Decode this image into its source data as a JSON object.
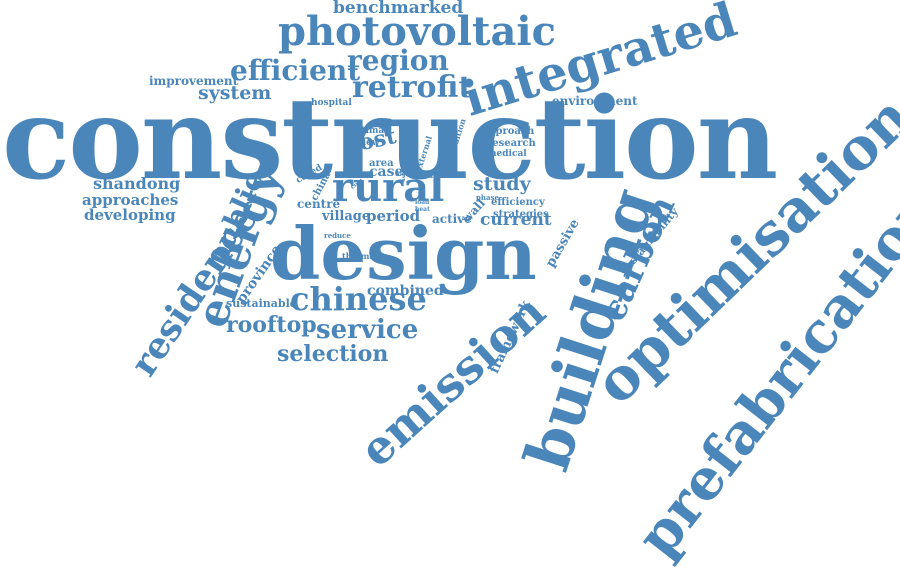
{
  "colors": {
    "word": "#4a86ba",
    "background": "#ffffff"
  },
  "words": [
    "construction",
    "design",
    "building",
    "optimisation",
    "prefabrication",
    "emission",
    "integrated",
    "energy",
    "photovoltaic",
    "rural",
    "residence",
    "carbon",
    "chinese",
    "public",
    "retrofit",
    "efficient",
    "region",
    "service",
    "rooftop",
    "selection",
    "benchmarked",
    "system",
    "shandong",
    "study",
    "post",
    "approaches",
    "developing",
    "improvement",
    "current",
    "province",
    "combined",
    "period",
    "case",
    "village",
    "centre",
    "active",
    "sustainable",
    "framework",
    "environment",
    "passive",
    "sustainability",
    "wall",
    "strategies",
    "efficiency",
    "approach",
    "research",
    "medical",
    "hospital",
    "optimal",
    "review",
    "area",
    "condition",
    "external",
    "china",
    "cased",
    "thermal",
    "reduce",
    "indoor",
    "model",
    "phase",
    "tool",
    "used",
    "load",
    "heat",
    "cost"
  ]
}
